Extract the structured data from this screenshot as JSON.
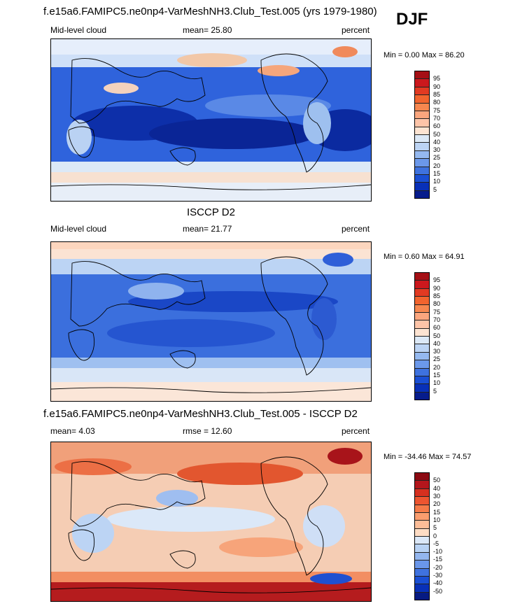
{
  "season": "DJF",
  "panels": [
    {
      "title": "f.e15a6.FAMIPC5.ne0np4-VarMeshNH3.Club_Test.005 (yrs 1979-1980)",
      "left_label": "Mid-level cloud",
      "center_label": "mean=  25.80",
      "right_label": "percent",
      "minmax": "Min =   0.00 Max =  86.20",
      "colorbar_ticks": [
        "95",
        "90",
        "85",
        "80",
        "75",
        "70",
        "60",
        "50",
        "40",
        "30",
        "25",
        "20",
        "15",
        "10",
        "5"
      ],
      "colorbar_colors": [
        "#a50f15",
        "#cb181d",
        "#e23a22",
        "#f2642e",
        "#f7874f",
        "#fba67e",
        "#fdc4a8",
        "#fde4d2",
        "#dce9f7",
        "#bcd4f4",
        "#95b9f0",
        "#6b98ea",
        "#3e72df",
        "#1a4fd4",
        "#0830b8",
        "#061c8c"
      ]
    },
    {
      "title": "ISCCP D2",
      "left_label": "Mid-level cloud",
      "center_label": "mean=  21.77",
      "right_label": "percent",
      "minmax": "Min =   0.60 Max =  64.91",
      "colorbar_ticks": [
        "95",
        "90",
        "85",
        "80",
        "75",
        "70",
        "60",
        "50",
        "40",
        "30",
        "25",
        "20",
        "15",
        "10",
        "5"
      ],
      "colorbar_colors": [
        "#a50f15",
        "#cb181d",
        "#e23a22",
        "#f2642e",
        "#f7874f",
        "#fba67e",
        "#fdc4a8",
        "#fde4d2",
        "#dce9f7",
        "#bcd4f4",
        "#95b9f0",
        "#6b98ea",
        "#3e72df",
        "#1a4fd4",
        "#0830b8",
        "#061c8c"
      ]
    },
    {
      "title": "f.e15a6.FAMIPC5.ne0np4-VarMeshNH3.Club_Test.005 - ISCCP D2",
      "left_label": "mean=   4.03",
      "center_label": "rmse =  12.60",
      "right_label": "percent",
      "minmax": "Min = -34.46 Max =  74.57",
      "colorbar_ticks": [
        "50",
        "40",
        "30",
        "20",
        "15",
        "10",
        "5",
        "0",
        "-5",
        "-10",
        "-15",
        "-20",
        "-30",
        "-40",
        "-50"
      ],
      "colorbar_colors": [
        "#8c0a12",
        "#b3161c",
        "#d6301f",
        "#ed5530",
        "#f57a48",
        "#fa9d6e",
        "#fcbd98",
        "#fddcc4",
        "#dbe8f8",
        "#b8d2f4",
        "#93b6ef",
        "#6a96e9",
        "#3f72df",
        "#1a4fd4",
        "#0830b8",
        "#061a82"
      ]
    }
  ]
}
